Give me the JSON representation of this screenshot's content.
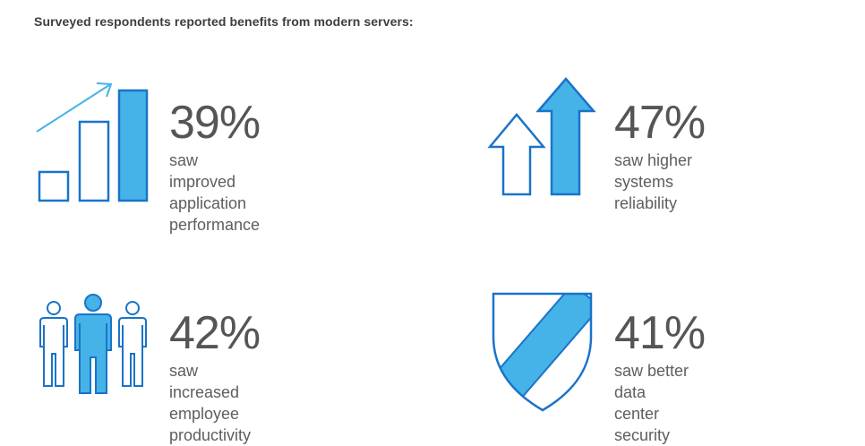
{
  "heading": "Surveyed respondents reported benefits from modern servers:",
  "colors": {
    "stroke": "#1a73c9",
    "fill": "#45b3e7",
    "text": "#555555"
  },
  "stats": [
    {
      "icon": "bar-chart-growth-icon",
      "percent": "39%",
      "line1": "saw improved",
      "line2": "application performance"
    },
    {
      "icon": "up-arrows-icon",
      "percent": "47%",
      "line1": "saw higher",
      "line2": "systems reliability"
    },
    {
      "icon": "people-icon",
      "percent": "42%",
      "line1": "saw increased",
      "line2": "employee productivity"
    },
    {
      "icon": "shield-icon",
      "percent": "41%",
      "line1": "saw better data",
      "line2": "center security"
    }
  ]
}
